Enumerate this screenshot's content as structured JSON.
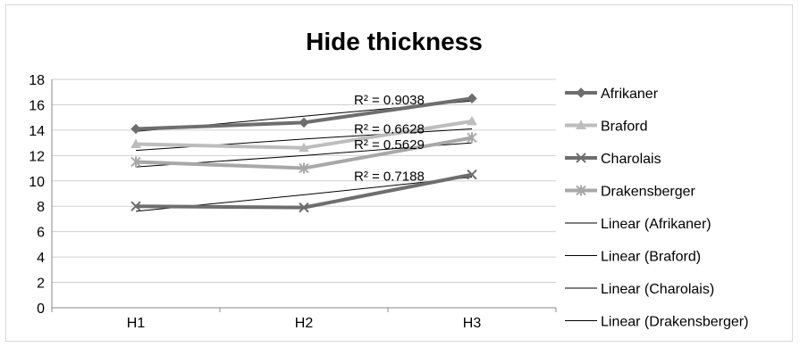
{
  "chart_data": {
    "type": "line",
    "title": "Hide thickness",
    "xlabel": "",
    "ylabel": "",
    "categories": [
      "H1",
      "H2",
      "H3"
    ],
    "ylim": [
      0,
      18
    ],
    "yticks": [
      "0",
      "2",
      "4",
      "6",
      "8",
      "10",
      "12",
      "14",
      "16",
      "18"
    ],
    "grid": true,
    "legend_position": "right",
    "series": [
      {
        "name": "Afrikaner",
        "values": [
          14.1,
          14.6,
          16.5
        ],
        "color": "#6e6e6e",
        "marker": "diamond"
      },
      {
        "name": "Braford",
        "values": [
          12.9,
          12.6,
          14.7
        ],
        "color": "#bdbdbd",
        "marker": "triangle"
      },
      {
        "name": "Charolais",
        "values": [
          8.0,
          7.9,
          10.5
        ],
        "color": "#6e6e6e",
        "marker": "x"
      },
      {
        "name": "Drakensberger",
        "values": [
          11.5,
          11.0,
          13.4
        ],
        "color": "#a8a8a8",
        "marker": "star"
      }
    ],
    "trendlines": [
      {
        "name": "Linear (Afrikaner)",
        "values": [
          13.9,
          15.1,
          16.3
        ],
        "r2": "R² = 0.9038"
      },
      {
        "name": "Linear (Braford)",
        "values": [
          12.4,
          13.3,
          14.1
        ],
        "r2": "R² = 0.6628"
      },
      {
        "name": "Linear (Charolais)",
        "values": [
          7.6,
          8.9,
          10.3
        ],
        "r2": "R² = 0.7188"
      },
      {
        "name": "Linear (Drakensberger)",
        "values": [
          11.1,
          12.0,
          13.0
        ],
        "r2": "R² = 0.5629"
      }
    ]
  }
}
